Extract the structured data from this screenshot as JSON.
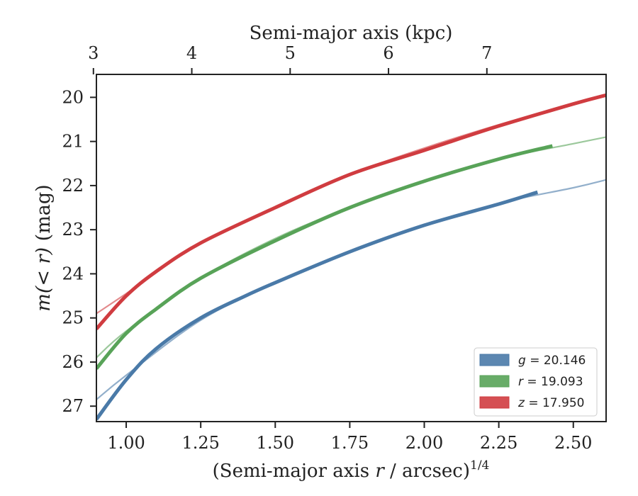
{
  "chart_data": {
    "type": "line",
    "xlabel": "(Semi-major axis r / arcsec)",
    "xlabel_italic_var": "r",
    "xlabel_prefix": "(Semi-major axis ",
    "xlabel_suffix": " / arcsec)",
    "xlabel_power": "1/4",
    "ylabel_prefix": "m(< r)",
    "ylabel_suffix": " (mag)",
    "top_xlabel": "Semi-major axis (kpc)",
    "xlim": [
      0.9,
      2.61
    ],
    "ylim": [
      27.35,
      19.48
    ],
    "y_inverted": true,
    "x_ticks": [
      "1.00",
      "1.25",
      "1.50",
      "1.75",
      "2.00",
      "2.25",
      "2.50"
    ],
    "y_ticks": [
      "20",
      "21",
      "22",
      "23",
      "24",
      "25",
      "26",
      "27"
    ],
    "top_ticks": [
      "3",
      "4",
      "5",
      "6",
      "7"
    ],
    "top_tick_positions_x": [
      0.89,
      1.22,
      1.55,
      1.88,
      2.21
    ],
    "legend_position": "lower-right",
    "series": [
      {
        "name": "g = 20.146",
        "legend_var": "g",
        "legend_value": "= 20.146",
        "color": "#4a7aa8",
        "data": [
          [
            0.9,
            27.3
          ],
          [
            1.0,
            26.4
          ],
          [
            1.1,
            25.7
          ],
          [
            1.25,
            25.0
          ],
          [
            1.4,
            24.5
          ],
          [
            1.5,
            24.2
          ],
          [
            1.75,
            23.5
          ],
          [
            2.0,
            22.9
          ],
          [
            2.25,
            22.42
          ],
          [
            2.38,
            22.15
          ]
        ],
        "model": [
          [
            0.9,
            26.85
          ],
          [
            1.0,
            26.3
          ],
          [
            1.25,
            25.05
          ],
          [
            1.5,
            24.2
          ],
          [
            1.75,
            23.5
          ],
          [
            2.0,
            22.9
          ],
          [
            2.25,
            22.4
          ],
          [
            2.5,
            22.05
          ],
          [
            2.61,
            21.87
          ]
        ]
      },
      {
        "name": "r = 19.093",
        "legend_var": "r",
        "legend_value": "= 19.093",
        "color": "#58a358",
        "data": [
          [
            0.9,
            26.15
          ],
          [
            1.0,
            25.35
          ],
          [
            1.1,
            24.8
          ],
          [
            1.25,
            24.1
          ],
          [
            1.5,
            23.25
          ],
          [
            1.75,
            22.5
          ],
          [
            2.0,
            21.9
          ],
          [
            2.25,
            21.4
          ],
          [
            2.43,
            21.1
          ]
        ],
        "model": [
          [
            0.9,
            25.9
          ],
          [
            1.0,
            25.3
          ],
          [
            1.25,
            24.1
          ],
          [
            1.5,
            23.2
          ],
          [
            1.75,
            22.5
          ],
          [
            2.0,
            21.9
          ],
          [
            2.25,
            21.4
          ],
          [
            2.5,
            21.05
          ],
          [
            2.61,
            20.9
          ]
        ]
      },
      {
        "name": "z = 17.950",
        "legend_var": "z",
        "legend_value": "= 17.950",
        "color": "#d03c40",
        "data": [
          [
            0.9,
            25.25
          ],
          [
            1.0,
            24.5
          ],
          [
            1.1,
            23.95
          ],
          [
            1.25,
            23.3
          ],
          [
            1.5,
            22.5
          ],
          [
            1.75,
            21.75
          ],
          [
            2.0,
            21.2
          ],
          [
            2.25,
            20.65
          ],
          [
            2.5,
            20.15
          ],
          [
            2.61,
            19.95
          ]
        ],
        "model": [
          [
            0.9,
            24.9
          ],
          [
            1.0,
            24.45
          ],
          [
            1.25,
            23.3
          ],
          [
            1.5,
            22.5
          ],
          [
            1.75,
            21.75
          ],
          [
            2.0,
            21.15
          ],
          [
            2.25,
            20.62
          ],
          [
            2.5,
            20.15
          ],
          [
            2.61,
            19.95
          ]
        ]
      }
    ]
  }
}
